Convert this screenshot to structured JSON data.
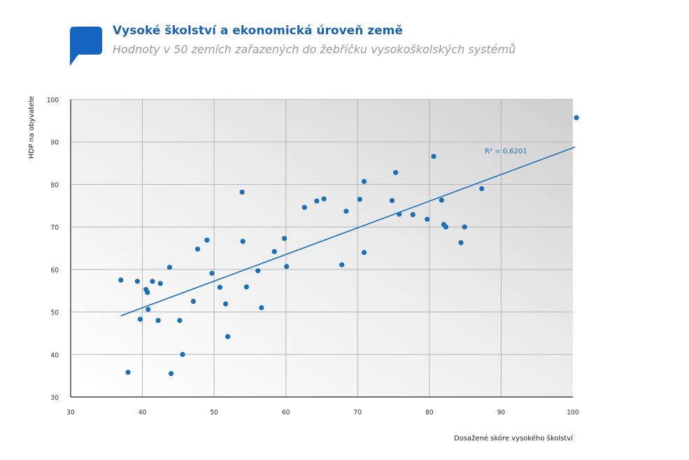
{
  "header": {
    "title": "Vysoké školství a ekonomická úroveň země",
    "subtitle": "Hodnoty v 50 zemích zařazených do žebříčku vysokoškolských systémů"
  },
  "colors": {
    "accent": "#1b6fb8",
    "title": "#1a63ad",
    "subtitle": "#9a9a9a"
  },
  "chart_data": {
    "type": "scatter",
    "title": "Vysoké školství a ekonomická úroveň země",
    "subtitle": "Hodnoty v 50 zemích zařazených do žebříčku vysokoškolských systémů",
    "xlabel": "Dosažené skóre vysokého školství",
    "ylabel": "HDP na obyvatele",
    "xlim": [
      30,
      100
    ],
    "ylim": [
      30,
      100
    ],
    "xticks": [
      "30",
      "40",
      "50",
      "60",
      "70",
      "80",
      "90",
      "100"
    ],
    "yticks": [
      "30",
      "40",
      "50",
      "60",
      "70",
      "80",
      "90",
      "100"
    ],
    "grid": true,
    "legend": "none",
    "annotation": "R² = 0,6201",
    "trendline": {
      "x": [
        37,
        100.3
      ],
      "y": [
        49.1,
        88.8
      ]
    },
    "points": [
      [
        37.0,
        57.5
      ],
      [
        38.0,
        35.8
      ],
      [
        39.3,
        57.2
      ],
      [
        39.7,
        48.3
      ],
      [
        40.5,
        55.3
      ],
      [
        40.7,
        54.6
      ],
      [
        40.8,
        50.6
      ],
      [
        41.4,
        57.2
      ],
      [
        42.2,
        48.0
      ],
      [
        42.5,
        56.7
      ],
      [
        43.8,
        60.5
      ],
      [
        44.0,
        35.5
      ],
      [
        45.2,
        48.0
      ],
      [
        45.6,
        40.0
      ],
      [
        47.1,
        52.5
      ],
      [
        47.7,
        64.8
      ],
      [
        49.0,
        66.9
      ],
      [
        49.7,
        59.1
      ],
      [
        50.8,
        55.8
      ],
      [
        51.6,
        51.9
      ],
      [
        51.9,
        44.2
      ],
      [
        53.9,
        78.2
      ],
      [
        54.0,
        66.6
      ],
      [
        54.5,
        55.9
      ],
      [
        56.1,
        59.7
      ],
      [
        56.6,
        51.0
      ],
      [
        58.4,
        64.2
      ],
      [
        59.8,
        67.3
      ],
      [
        60.1,
        60.7
      ],
      [
        62.6,
        74.6
      ],
      [
        64.3,
        76.1
      ],
      [
        65.3,
        76.6
      ],
      [
        67.8,
        61.1
      ],
      [
        68.4,
        73.7
      ],
      [
        70.3,
        76.5
      ],
      [
        70.9,
        80.7
      ],
      [
        70.9,
        64.0
      ],
      [
        74.8,
        76.2
      ],
      [
        75.3,
        82.8
      ],
      [
        75.8,
        73.0
      ],
      [
        77.7,
        72.9
      ],
      [
        79.7,
        71.8
      ],
      [
        80.6,
        86.6
      ],
      [
        81.7,
        76.3
      ],
      [
        82.0,
        70.6
      ],
      [
        82.3,
        70.0
      ],
      [
        84.4,
        66.3
      ],
      [
        84.9,
        70.0
      ],
      [
        87.3,
        79.0
      ],
      [
        100.5,
        95.7
      ]
    ]
  }
}
